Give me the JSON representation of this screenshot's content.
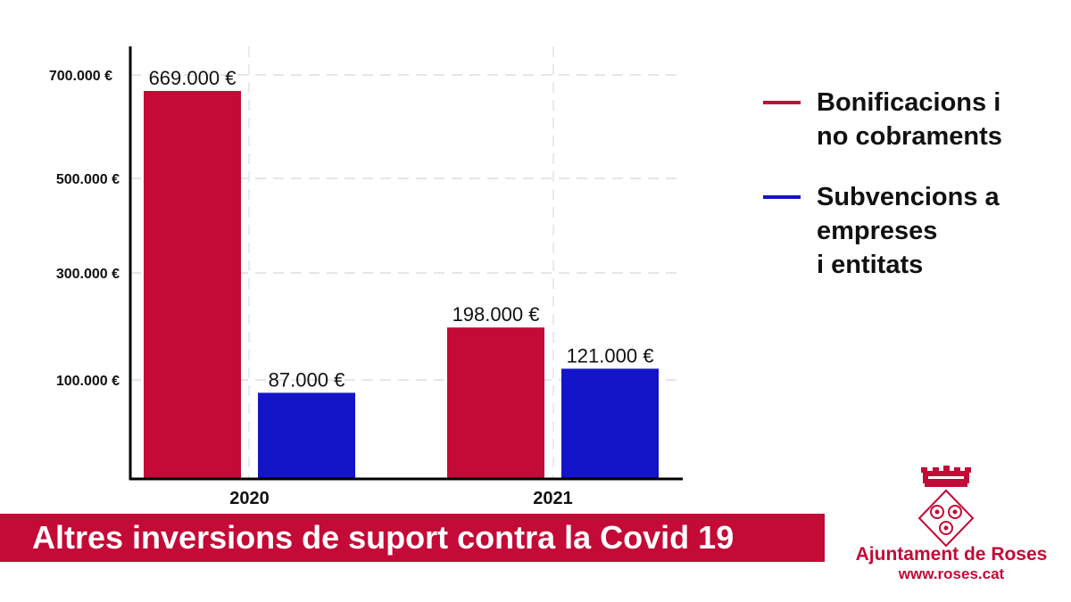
{
  "chart_data": {
    "type": "bar",
    "title": "Altres inversions de suport contra la Covid 19",
    "categories": [
      "2020",
      "2021"
    ],
    "series": [
      {
        "name": "Bonificacions i no cobraments",
        "color": "#c40a36",
        "values": [
          669000,
          198000
        ],
        "labels": [
          "669.000 €",
          "198.000 €"
        ]
      },
      {
        "name": "Subvencions a empreses i entitats",
        "color": "#1414c8",
        "values": [
          87000,
          121000
        ],
        "labels": [
          "87.000 €",
          "121.000 €"
        ]
      }
    ],
    "y_ticks": [
      100000,
      300000,
      500000,
      700000
    ],
    "y_tick_labels": [
      "100.000 €",
      "300.000 €",
      "500.000 €",
      "700.000 €"
    ],
    "ylim": [
      0,
      700000
    ],
    "grid": true,
    "legend_position": "right"
  },
  "legend": {
    "items": [
      {
        "lines": [
          "Bonificacions i",
          "no cobraments"
        ]
      },
      {
        "lines": [
          "Subvencions a",
          "empreses",
          "i entitats"
        ]
      }
    ]
  },
  "footer": {
    "title": "Altres inversions de suport contra la Covid 19",
    "org_name": "Ajuntament de Roses",
    "org_url": "www.roses.cat"
  }
}
